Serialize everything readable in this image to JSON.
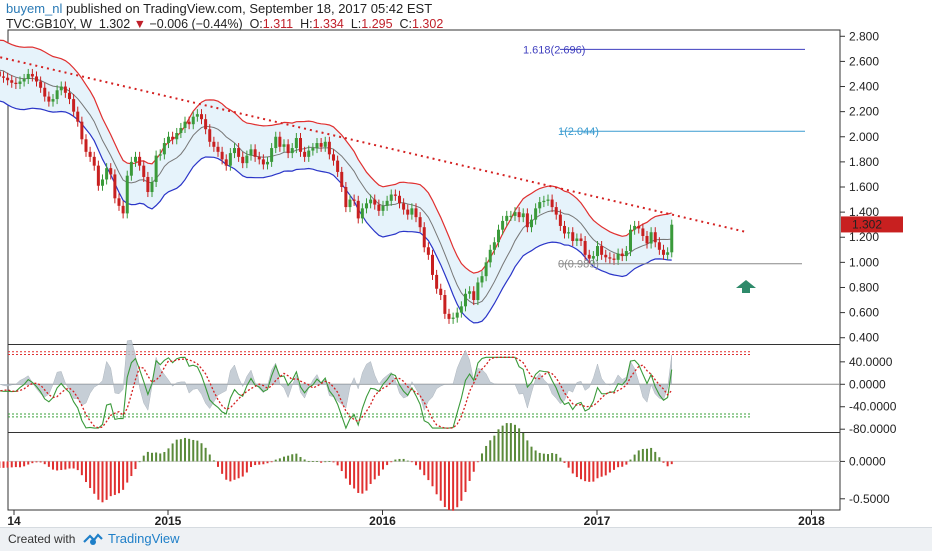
{
  "header": {
    "user": "buyem_nl",
    "published": "published on TradingView.com, September 18, 2017 05:42 EST",
    "symbol": "TVC:GB10Y, W",
    "last": "1.302",
    "change": "−0.006 (−0.44%)",
    "open_label": "O:",
    "open": "1.311",
    "high_label": "H:",
    "high": "1.334",
    "low_label": "L:",
    "low": "1.295",
    "close_label": "C:",
    "close": "1.302"
  },
  "footer": {
    "created_with": "Created with",
    "brand": "TradingView"
  },
  "chart_data": {
    "type": "candlestick",
    "price_ticks": [
      "2.800",
      "2.600",
      "2.400",
      "2.200",
      "2.000",
      "1.800",
      "1.600",
      "1.400",
      "1.200",
      "1.000",
      "0.800",
      "0.600",
      "0.400"
    ],
    "price_range": [
      0.35,
      2.85
    ],
    "x_labels": [
      "14",
      "2015",
      "2016",
      "2017",
      "2018"
    ],
    "current_price_label": "1.302",
    "fib_levels": [
      {
        "label": "1.618(2.696)",
        "value": 2.696,
        "color": "#3f3fbf"
      },
      {
        "label": "1(2.044)",
        "value": 2.044,
        "color": "#3a9bd0"
      },
      {
        "label": "0(0.989)",
        "value": 0.989,
        "color": "#888888"
      }
    ],
    "trendline": {
      "from": [
        2014.0,
        2.72
      ],
      "to": [
        2017.7,
        1.24
      ],
      "style": "dotted",
      "color": "#d42020"
    },
    "osc_ticks": [
      "40.0000",
      "0.0000",
      "-40.0000",
      "-80.0000"
    ],
    "osc_range": [
      -85,
      70
    ],
    "osc_levels": {
      "upper": 53,
      "lower": -53
    },
    "hist_ticks": [
      "0.0000",
      "-0.5000"
    ],
    "hist_range": [
      -0.65,
      0.38
    ],
    "weekly_close": [
      2.65,
      2.6,
      2.55,
      2.52,
      2.5,
      2.48,
      2.47,
      2.52,
      2.48,
      2.47,
      2.45,
      2.43,
      2.42,
      2.44,
      2.46,
      2.5,
      2.48,
      2.44,
      2.39,
      2.32,
      2.28,
      2.3,
      2.37,
      2.4,
      2.35,
      2.3,
      2.2,
      2.12,
      1.98,
      1.88,
      1.84,
      1.77,
      1.61,
      1.66,
      1.75,
      1.7,
      1.51,
      1.45,
      1.39,
      1.69,
      1.8,
      1.84,
      1.77,
      1.68,
      1.56,
      1.64,
      1.85,
      1.86,
      1.95,
      2.0,
      1.98,
      2.03,
      2.07,
      2.12,
      2.1,
      2.16,
      2.18,
      2.14,
      2.06,
      1.96,
      1.92,
      1.88,
      1.82,
      1.77,
      1.87,
      1.91,
      1.84,
      1.79,
      1.85,
      1.9,
      1.84,
      1.82,
      1.78,
      1.8,
      1.91,
      2.0,
      1.92,
      1.94,
      1.87,
      1.91,
      1.99,
      1.88,
      1.84,
      1.89,
      1.91,
      1.95,
      1.92,
      1.96,
      1.86,
      1.81,
      1.72,
      1.6,
      1.44,
      1.5,
      1.49,
      1.35,
      1.43,
      1.47,
      1.5,
      1.46,
      1.41,
      1.45,
      1.49,
      1.54,
      1.53,
      1.47,
      1.42,
      1.38,
      1.43,
      1.36,
      1.28,
      1.12,
      1.06,
      0.9,
      0.79,
      0.74,
      0.59,
      0.55,
      0.56,
      0.6,
      0.65,
      0.75,
      0.77,
      0.7,
      0.84,
      0.89,
      1.0,
      1.1,
      1.16,
      1.26,
      1.33,
      1.37,
      1.37,
      1.4,
      1.36,
      1.39,
      1.28,
      1.34,
      1.43,
      1.48,
      1.49,
      1.5,
      1.44,
      1.38,
      1.29,
      1.23,
      1.24,
      1.17,
      1.19,
      1.17,
      1.06,
      1.03,
      1.05,
      1.13,
      1.06,
      1.04,
      1.03,
      1.02,
      1.07,
      1.05,
      1.09,
      1.26,
      1.29,
      1.27,
      1.21,
      1.15,
      1.24,
      1.16,
      1.1,
      1.06,
      1.08,
      1.3
    ]
  }
}
